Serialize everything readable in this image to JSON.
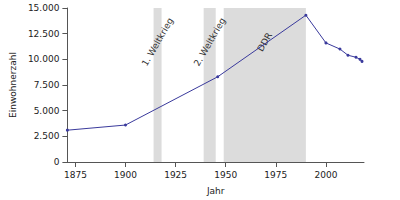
{
  "chart_data": {
    "type": "line",
    "x_label": "Jahr",
    "y_label": "Einwohnerzahl",
    "x": [
      1871,
      1900,
      1946,
      1990,
      2000,
      2007,
      2011,
      2015,
      2017,
      2018
    ],
    "values": [
      3100,
      3600,
      8300,
      14300,
      11600,
      11000,
      10400,
      10200,
      10000,
      9800
    ],
    "color": "#3a3a9c",
    "marker": "circle",
    "xlim": [
      1871,
      2019
    ],
    "xticks": [
      1875,
      1900,
      1925,
      1950,
      1975,
      2000
    ],
    "ylim": [
      0,
      15000
    ],
    "yticks": [
      0,
      {
        "value": 2500,
        "label": "2.500"
      },
      {
        "value": 5000,
        "label": "5.000"
      },
      {
        "value": 7500,
        "label": "7.500"
      },
      {
        "value": 10000,
        "label": "10.000"
      },
      {
        "value": 12500,
        "label": "12.500"
      },
      {
        "value": 15000,
        "label": "15.000"
      }
    ],
    "grid": false,
    "bands": [
      {
        "label": "1. Weltkrieg",
        "start": 1914,
        "end": 1918
      },
      {
        "label": "2. Weltkrieg",
        "start": 1939,
        "end": 1945
      },
      {
        "label": "DDR",
        "start": 1949,
        "end": 1990
      }
    ]
  }
}
